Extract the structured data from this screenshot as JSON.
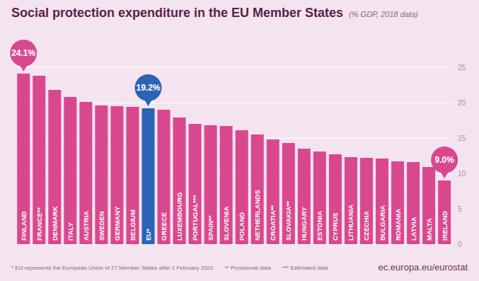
{
  "chart_data": {
    "type": "bar",
    "title": "Social protection expenditure in the EU Member States",
    "subtitle": "(% GDP, 2018 data)",
    "categories": [
      "FINLAND",
      "FRANCE**",
      "DENMARK",
      "ITALY",
      "AUSTRIA",
      "SWEDEN",
      "GERMANY",
      "BELGIUM",
      "EU*",
      "GREECE",
      "LUXEMBOURG",
      "PORTUGAL***",
      "SPAIN**",
      "SLOVENIA",
      "POLAND",
      "NETHERLANDS",
      "CROATIA**",
      "SLOVAKIA**",
      "HUNGARY",
      "ESTONIA",
      "CYPRUS",
      "LITHUANIA",
      "CZECHIA",
      "BULGARIA",
      "ROMANIA",
      "LATVIA",
      "MALTA",
      "IRELAND"
    ],
    "values": [
      24.1,
      23.8,
      21.8,
      20.8,
      20.1,
      19.6,
      19.5,
      19.4,
      19.2,
      19.0,
      17.9,
      17.0,
      16.8,
      16.7,
      16.1,
      15.5,
      14.8,
      14.3,
      13.5,
      13.1,
      12.7,
      12.3,
      12.2,
      12.1,
      11.7,
      11.6,
      10.9,
      9.0
    ],
    "value_labels": [
      "24.1%",
      null,
      null,
      null,
      null,
      null,
      null,
      null,
      "19.2%",
      null,
      null,
      null,
      null,
      null,
      null,
      null,
      null,
      null,
      null,
      null,
      null,
      null,
      null,
      null,
      null,
      null,
      null,
      "9.0%"
    ],
    "colors": [
      "#d9488f",
      "#d9488f",
      "#d9488f",
      "#d9488f",
      "#d9488f",
      "#d9488f",
      "#d9488f",
      "#d9488f",
      "#2b63b5",
      "#d9488f",
      "#d9488f",
      "#d9488f",
      "#d9488f",
      "#d9488f",
      "#d9488f",
      "#d9488f",
      "#d9488f",
      "#d9488f",
      "#d9488f",
      "#d9488f",
      "#d9488f",
      "#d9488f",
      "#d9488f",
      "#d9488f",
      "#d9488f",
      "#d9488f",
      "#d9488f",
      "#d9488f"
    ],
    "ylim": [
      0,
      25
    ],
    "yticks": [
      0,
      5,
      10,
      15,
      20,
      25
    ],
    "grid": true,
    "notes": [
      "* EU represents the European Union of 27 Member States after 1 February 2020",
      "** Provisional data",
      "*** Estimated data"
    ],
    "source": "ec.europa.eu/eurostat"
  }
}
